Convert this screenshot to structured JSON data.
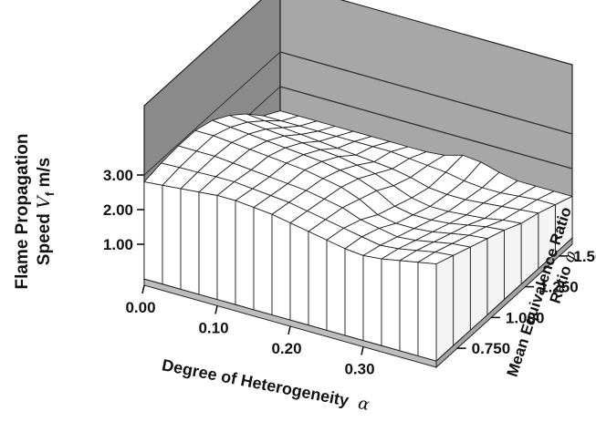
{
  "chart_data": {
    "type": "surface",
    "title": "",
    "xlabel": "Degree of Heterogeneity",
    "xlabel_symbol": "α",
    "ylabel": "Mean Equivalence Ratio",
    "ylabel_symbol": "φ",
    "zlabel_line1": "Flame Propagation",
    "zlabel_line2_prefix": "Speed",
    "zlabel_symbol": "V",
    "zlabel_subscript": "f",
    "zlabel_unit": "m/s",
    "x_ticks": [
      "0.00",
      "0.10",
      "0.20",
      "0.30"
    ],
    "y_ticks": [
      "0.750",
      "1.000",
      "1.250",
      "1.500"
    ],
    "z_ticks": [
      "1.00",
      "2.00",
      "3.00"
    ],
    "xlim": [
      0.0,
      0.4
    ],
    "ylim": [
      0.625,
      1.625
    ],
    "zlim": [
      0.0,
      4.0
    ],
    "grid": true,
    "surface_color": "#ffffff",
    "line_color": "#222222",
    "wall_color": "#8a8a8a",
    "floor_color": "#e6e6e6",
    "alpha": [
      0.0,
      0.025,
      0.05,
      0.075,
      0.1,
      0.125,
      0.15,
      0.175,
      0.2,
      0.225,
      0.25,
      0.275,
      0.3,
      0.325,
      0.35,
      0.375,
      0.4
    ],
    "phi": [
      0.625,
      0.75,
      0.875,
      1.0,
      1.125,
      1.25,
      1.375,
      1.5,
      1.625
    ],
    "vf": [
      [
        2.8,
        2.85,
        2.9,
        2.95,
        3.0,
        3.0,
        2.95,
        2.9,
        2.8,
        2.7,
        2.6,
        2.5,
        2.45,
        2.5,
        2.6,
        2.7,
        2.8
      ],
      [
        2.9,
        2.92,
        2.93,
        2.95,
        2.95,
        2.9,
        2.85,
        2.8,
        2.7,
        2.6,
        2.5,
        2.4,
        2.3,
        2.35,
        2.45,
        2.55,
        2.6
      ],
      [
        2.95,
        2.95,
        2.95,
        2.9,
        2.85,
        2.8,
        2.75,
        2.7,
        2.6,
        2.5,
        2.3,
        2.2,
        2.1,
        2.15,
        2.25,
        2.35,
        2.4
      ],
      [
        2.95,
        2.95,
        2.9,
        2.85,
        2.8,
        2.75,
        2.7,
        2.6,
        2.5,
        2.3,
        2.0,
        1.9,
        1.9,
        1.95,
        2.05,
        2.15,
        2.2
      ],
      [
        2.8,
        2.75,
        2.7,
        2.65,
        2.6,
        2.55,
        2.5,
        2.4,
        2.3,
        2.1,
        1.8,
        1.7,
        1.7,
        1.75,
        1.85,
        1.95,
        2.0
      ],
      [
        2.5,
        2.45,
        2.4,
        2.35,
        2.3,
        2.25,
        2.2,
        2.1,
        2.0,
        1.8,
        1.6,
        1.5,
        1.5,
        1.55,
        1.6,
        1.7,
        1.75
      ],
      [
        2.1,
        2.05,
        2.0,
        1.95,
        1.9,
        1.85,
        1.8,
        1.75,
        1.7,
        1.6,
        1.45,
        1.4,
        1.4,
        1.45,
        1.5,
        1.55,
        1.6
      ],
      [
        1.6,
        1.6,
        1.6,
        1.6,
        1.6,
        1.6,
        1.6,
        1.6,
        1.55,
        1.5,
        1.45,
        1.35,
        1.3,
        1.3,
        1.35,
        1.4,
        1.4
      ],
      [
        1.3,
        1.3,
        1.3,
        1.3,
        1.3,
        1.3,
        1.3,
        1.3,
        1.3,
        1.35,
        1.5,
        1.45,
        1.3,
        1.2,
        1.2,
        1.2,
        1.2
      ]
    ]
  }
}
